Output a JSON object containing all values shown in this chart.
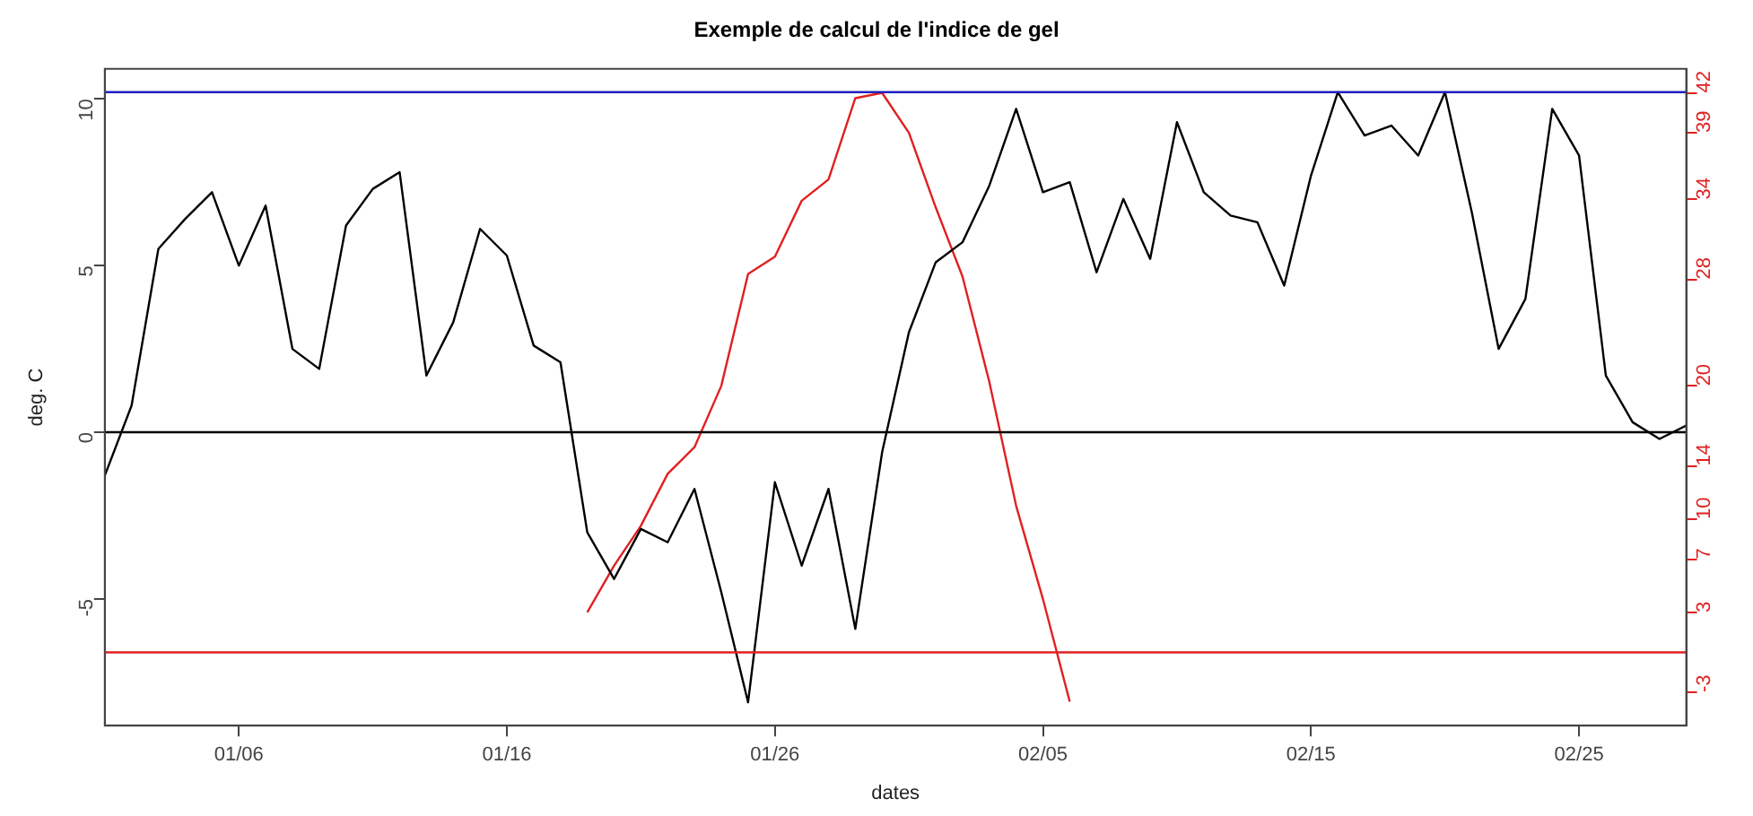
{
  "chart_data": {
    "type": "line",
    "title": "Exemple de calcul de l'indice de gel",
    "xlabel": "dates",
    "ylabel": "deg. C",
    "x": [
      "--01-01",
      "--01-02",
      "--01-03",
      "--01-04",
      "--01-05",
      "--01-06",
      "--01-07",
      "--01-08",
      "--01-09",
      "--01-10",
      "--01-11",
      "--01-12",
      "--01-13",
      "--01-14",
      "--01-15",
      "--01-16",
      "--01-17",
      "--01-18",
      "--01-19",
      "--01-20",
      "--01-21",
      "--01-22",
      "--01-23",
      "--01-24",
      "--01-25",
      "--01-26",
      "--01-27",
      "--01-28",
      "--01-29",
      "--01-30",
      "--01-31",
      "--02-01",
      "--02-02",
      "--02-03",
      "--02-04",
      "--02-05",
      "--02-06",
      "--02-07",
      "--02-08",
      "--02-09",
      "--02-10",
      "--02-11",
      "--02-12",
      "--02-13",
      "--02-14",
      "--02-15",
      "--02-16",
      "--02-17",
      "--02-18",
      "--02-19",
      "--02-20",
      "--02-21",
      "--02-22",
      "--02-23",
      "--02-24",
      "--02-25",
      "--02-26",
      "--02-27",
      "--02-28",
      "--03-01"
    ],
    "xlim": [
      "--01-01",
      "--03-01"
    ],
    "xticks": [
      {
        "value": "--01-06",
        "label": "01/06"
      },
      {
        "value": "--01-16",
        "label": "01/16"
      },
      {
        "value": "--01-26",
        "label": "01/26"
      },
      {
        "value": "--02-05",
        "label": "02/05"
      },
      {
        "value": "--02-15",
        "label": "02/15"
      },
      {
        "value": "--02-25",
        "label": "02/25"
      }
    ],
    "ylim": [
      -8.8,
      10.9
    ],
    "yticks": [
      -5,
      0,
      5,
      10
    ],
    "y2lim": [
      -5.5,
      43.8
    ],
    "y2ticks": [
      -3,
      3,
      7,
      10,
      14,
      20,
      28,
      34,
      39,
      42
    ],
    "series": [
      {
        "color": "#000000",
        "values": [
          -1.3,
          0.8,
          5.5,
          6.4,
          7.2,
          5.0,
          6.8,
          2.5,
          1.9,
          6.2,
          7.3,
          7.8,
          1.7,
          3.3,
          6.1,
          5.3,
          2.6,
          2.1,
          -3.0,
          -4.4,
          -2.9,
          -3.3,
          -1.7,
          -4.8,
          -8.1,
          -1.5,
          -4.0,
          -1.7,
          -5.9,
          -0.6,
          3.0,
          5.1,
          5.7,
          7.4,
          9.7,
          7.2,
          7.5,
          4.8,
          7.0,
          5.2,
          9.3,
          7.2,
          6.5,
          6.3,
          4.4,
          7.7,
          10.2,
          8.9,
          9.2,
          8.3,
          10.2,
          6.6,
          2.5,
          4.0,
          9.7,
          8.3,
          1.7,
          0.3,
          -0.2,
          0.2
        ]
      },
      {
        "color": "#e02020",
        "axis": "y2",
        "values": [
          null,
          null,
          null,
          null,
          null,
          null,
          null,
          null,
          null,
          null,
          null,
          null,
          null,
          null,
          null,
          null,
          null,
          null,
          3,
          6.5,
          9.5,
          13.4,
          15.4,
          20,
          28.4,
          29.7,
          33.9,
          35.5,
          41.6,
          42,
          39,
          33.4,
          28.2,
          20.3,
          11,
          4,
          -3.7,
          null,
          null,
          null,
          null,
          null,
          null,
          null,
          null,
          null,
          null,
          null,
          null,
          null,
          null,
          null,
          null,
          null,
          null,
          null,
          null,
          null,
          null,
          null
        ]
      }
    ],
    "ref_lines": [
      {
        "axis": "y",
        "value": 0,
        "color": "#000000"
      },
      {
        "axis": "y",
        "value": 10.2,
        "color": "#2020c0"
      },
      {
        "axis": "y2",
        "value": 0,
        "color": "#e02020"
      }
    ],
    "grid": false,
    "legend": false,
    "marker": "none",
    "line_style": "solid"
  }
}
